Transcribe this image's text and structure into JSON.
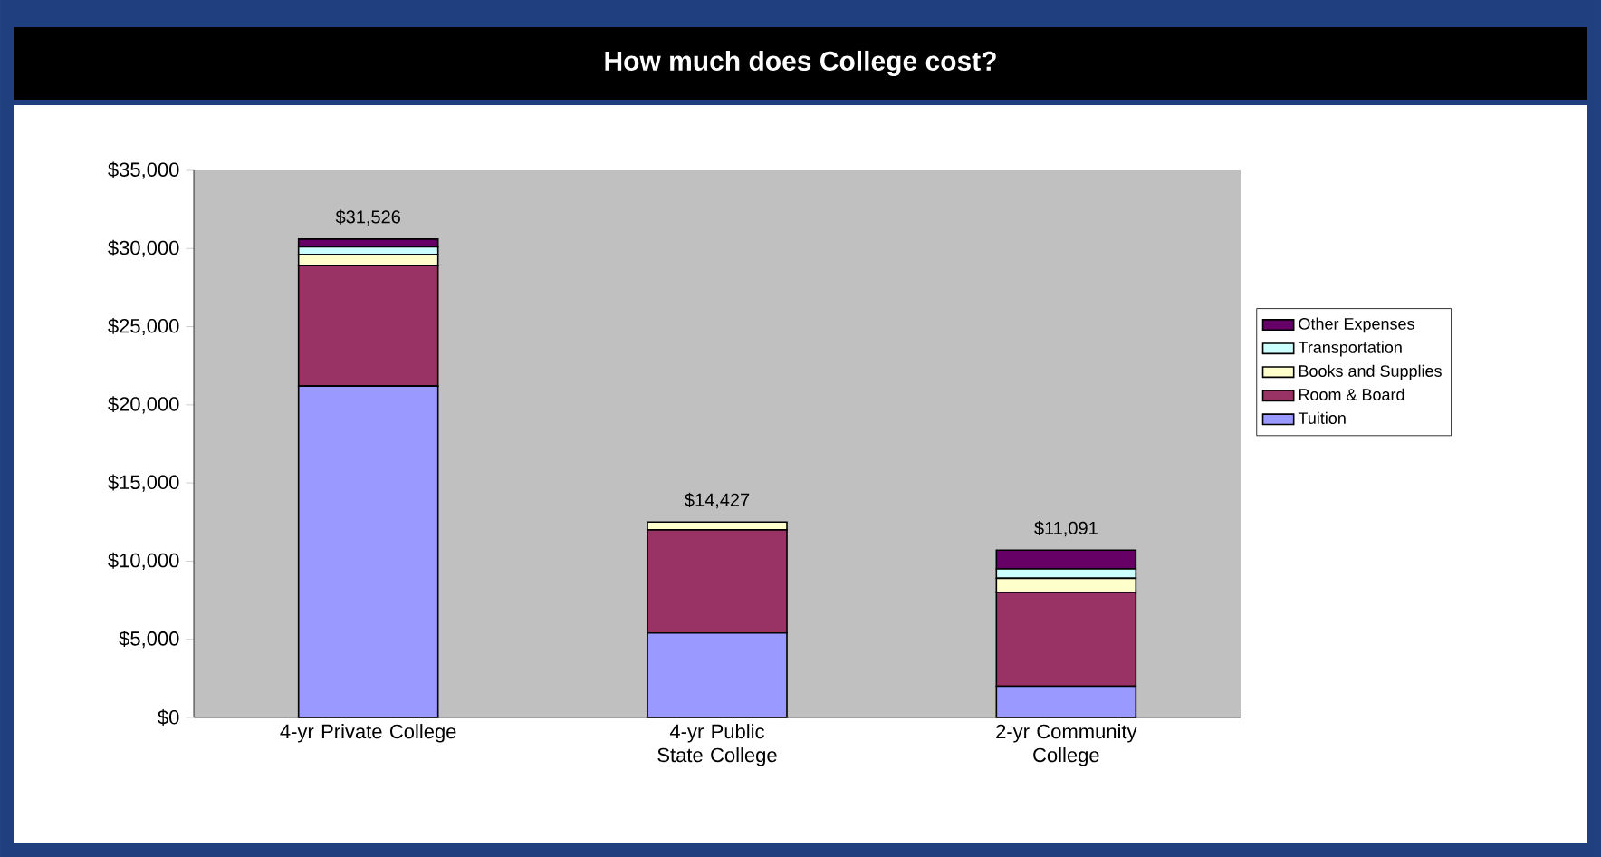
{
  "chart_data": {
    "type": "bar",
    "stacked": true,
    "title": "How much does College cost?",
    "categories": [
      "4-yr Private College",
      "4-yr Public State College",
      "2-yr Community College"
    ],
    "series": [
      {
        "name": "Tuition",
        "color": "#9999ff",
        "values": [
          21200,
          5400,
          2000
        ]
      },
      {
        "name": "Room & Board",
        "color": "#993366",
        "values": [
          7700,
          6600,
          6000
        ]
      },
      {
        "name": "Books and Supplies",
        "color": "#ffffcc",
        "values": [
          700,
          500,
          900
        ]
      },
      {
        "name": "Transportation",
        "color": "#ccffff",
        "values": [
          500,
          0,
          600
        ]
      },
      {
        "name": "Other Expenses",
        "color": "#660066",
        "values": [
          500,
          0,
          1200
        ]
      }
    ],
    "annotations": [
      {
        "text": "$31,526",
        "x": "4-yr Private College",
        "y": 30600
      },
      {
        "text": "$14,427",
        "x": "4-yr Public State College",
        "y": 12500
      },
      {
        "text": "$11,091",
        "x": "2-yr Community College",
        "y": 10700
      }
    ],
    "ylim": [
      0,
      35000
    ],
    "yticks": [
      {
        "value": 0,
        "label": "$0"
      },
      {
        "value": 5000,
        "label": "$5,000"
      },
      {
        "value": 10000,
        "label": "$10,000"
      },
      {
        "value": 15000,
        "label": "$15,000"
      },
      {
        "value": 20000,
        "label": "$20,000"
      },
      {
        "value": 25000,
        "label": "$25,000"
      },
      {
        "value": 30000,
        "label": "$30,000"
      },
      {
        "value": 35000,
        "label": "$35,000"
      }
    ],
    "grid": false,
    "legend": "right"
  }
}
